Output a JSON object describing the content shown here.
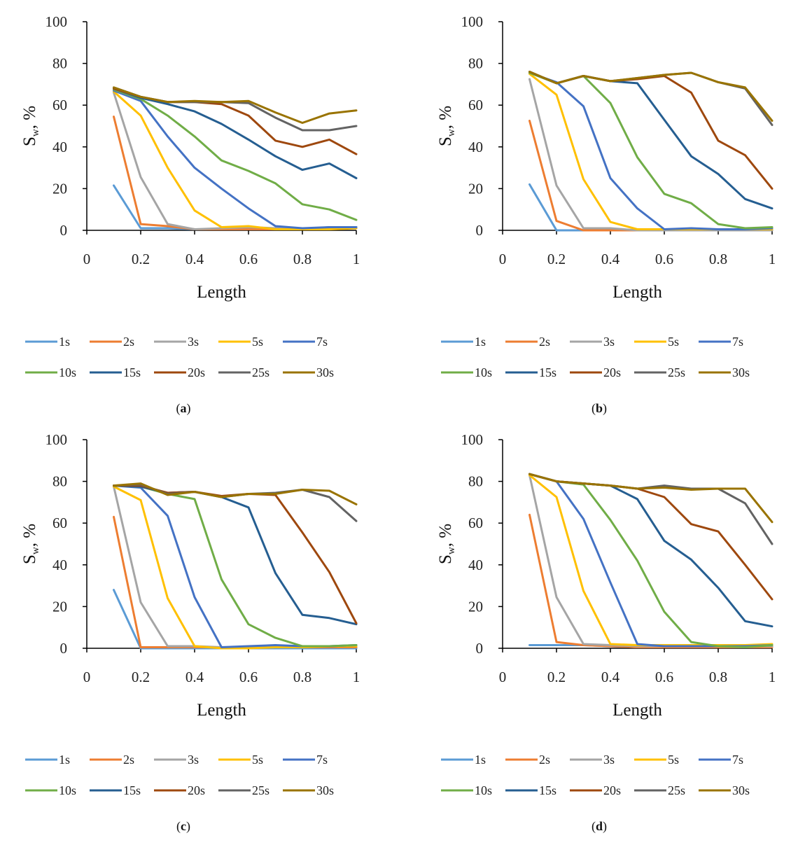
{
  "chart_data": [
    {
      "type": "line",
      "caption": "(a)",
      "caption_letter": "a",
      "xlabel": "Length",
      "ylabel": "Sw, %",
      "ylabel_main": "S",
      "ylabel_sub": "w",
      "ylabel_rest": ", %",
      "xlim": [
        0,
        1
      ],
      "ylim": [
        0,
        100
      ],
      "xticks": [
        "0",
        "0.2",
        "0.4",
        "0.6",
        "0.8",
        "1"
      ],
      "yticks": [
        "0",
        "20",
        "40",
        "60",
        "80",
        "100"
      ],
      "legend_position": "bottom",
      "x": [
        0.1,
        0.2,
        0.3,
        0.4,
        0.5,
        0.6,
        0.7,
        0.8,
        0.9,
        1.0
      ],
      "series": [
        {
          "name": "1s",
          "color": "#5B9BD5",
          "values": [
            21.5,
            1,
            1,
            0.5,
            0.5,
            0.5,
            0.5,
            0.5,
            1.5,
            1.5
          ]
        },
        {
          "name": "2s",
          "color": "#ED7D31",
          "values": [
            54.5,
            3,
            2,
            0.5,
            0.5,
            0.5,
            0.5,
            0.5,
            1,
            1
          ]
        },
        {
          "name": "3s",
          "color": "#A5A5A5",
          "values": [
            66,
            25.5,
            3,
            0.5,
            1,
            1.5,
            1,
            1,
            1,
            1.5
          ]
        },
        {
          "name": "5s",
          "color": "#FFC000",
          "values": [
            66.5,
            55,
            30,
            9.5,
            1.5,
            2,
            0.5,
            0.5,
            0.5,
            1
          ]
        },
        {
          "name": "7s",
          "color": "#4472C4",
          "values": [
            67,
            62,
            45,
            30,
            20,
            10.5,
            2,
            1,
            1.5,
            1.5
          ]
        },
        {
          "name": "10s",
          "color": "#70AD47",
          "values": [
            67.5,
            63,
            55,
            45,
            33.5,
            28.5,
            22.5,
            12.5,
            10,
            5
          ]
        },
        {
          "name": "15s",
          "color": "#255E91",
          "values": [
            68,
            63.5,
            60.5,
            57,
            51,
            43.5,
            35.5,
            29,
            32,
            25
          ]
        },
        {
          "name": "20s",
          "color": "#9E480E",
          "values": [
            68,
            64,
            61.5,
            61.5,
            60.5,
            55,
            43,
            40,
            43.5,
            36.5
          ]
        },
        {
          "name": "25s",
          "color": "#636363",
          "values": [
            68.5,
            64,
            61.5,
            61.5,
            61.5,
            61,
            54,
            48,
            48,
            50
          ]
        },
        {
          "name": "30s",
          "color": "#997300",
          "values": [
            68.5,
            64,
            61.5,
            62,
            61.5,
            62,
            56.5,
            51.5,
            56,
            57.5
          ]
        }
      ]
    },
    {
      "type": "line",
      "caption": "(b)",
      "caption_letter": "b",
      "xlabel": "Length",
      "ylabel": "Sw, %",
      "ylabel_main": "S",
      "ylabel_sub": "w",
      "ylabel_rest": ", %",
      "xlim": [
        0,
        1
      ],
      "ylim": [
        0,
        100
      ],
      "xticks": [
        "0",
        "0.2",
        "0.4",
        "0.6",
        "0.8",
        "1"
      ],
      "yticks": [
        "0",
        "20",
        "40",
        "60",
        "80",
        "100"
      ],
      "legend_position": "bottom",
      "x": [
        0.1,
        0.2,
        0.3,
        0.4,
        0.5,
        0.6,
        0.7,
        0.8,
        0.9,
        1.0
      ],
      "series": [
        {
          "name": "1s",
          "color": "#5B9BD5",
          "values": [
            22,
            0,
            0,
            0,
            0,
            0,
            0,
            0,
            0,
            0
          ]
        },
        {
          "name": "2s",
          "color": "#ED7D31",
          "values": [
            52.5,
            4.5,
            0,
            0,
            0,
            0,
            0,
            0,
            0,
            0
          ]
        },
        {
          "name": "3s",
          "color": "#A5A5A5",
          "values": [
            72.5,
            21.5,
            1,
            1,
            0,
            0,
            0,
            0,
            0,
            0
          ]
        },
        {
          "name": "5s",
          "color": "#FFC000",
          "values": [
            75,
            65,
            24.5,
            4,
            0.5,
            0.5,
            0.5,
            0.5,
            0.5,
            0.5
          ]
        },
        {
          "name": "7s",
          "color": "#4472C4",
          "values": [
            75.5,
            71,
            59.5,
            25,
            10.5,
            0.5,
            1,
            0.5,
            0.5,
            1
          ]
        },
        {
          "name": "10s",
          "color": "#70AD47",
          "values": [
            75.5,
            70.5,
            74,
            61,
            35,
            17.5,
            13,
            3,
            1,
            1.5
          ]
        },
        {
          "name": "15s",
          "color": "#255E91",
          "values": [
            76,
            70.5,
            74,
            71.5,
            70.5,
            53,
            35.5,
            27,
            15,
            10.5
          ]
        },
        {
          "name": "20s",
          "color": "#9E480E",
          "values": [
            76,
            70.5,
            74,
            71.5,
            72.5,
            74,
            66,
            43,
            36,
            20
          ]
        },
        {
          "name": "25s",
          "color": "#636363",
          "values": [
            76,
            70.5,
            74,
            71.5,
            73,
            74.5,
            75.5,
            71,
            68,
            50.5
          ]
        },
        {
          "name": "30s",
          "color": "#997300",
          "values": [
            76,
            70.5,
            74,
            71.5,
            73,
            74.5,
            75.5,
            71,
            68.5,
            52.5
          ]
        }
      ]
    },
    {
      "type": "line",
      "caption": "(c)",
      "caption_letter": "c",
      "xlabel": "Length",
      "ylabel": "Sw, %",
      "ylabel_main": "S",
      "ylabel_sub": "w",
      "ylabel_rest": ", %",
      "xlim": [
        0,
        1
      ],
      "ylim": [
        0,
        100
      ],
      "xticks": [
        "0",
        "0.2",
        "0.4",
        "0.6",
        "0.8",
        "1"
      ],
      "yticks": [
        "0",
        "20",
        "40",
        "60",
        "80",
        "100"
      ],
      "legend_position": "bottom",
      "x": [
        0.1,
        0.2,
        0.3,
        0.4,
        0.5,
        0.6,
        0.7,
        0.8,
        0.9,
        1.0
      ],
      "series": [
        {
          "name": "1s",
          "color": "#5B9BD5",
          "values": [
            28,
            0,
            0,
            0,
            0,
            0,
            0,
            0,
            0,
            0
          ]
        },
        {
          "name": "2s",
          "color": "#ED7D31",
          "values": [
            63,
            0.5,
            0.5,
            0.5,
            0.5,
            0.5,
            0.5,
            0.5,
            0.5,
            0.5
          ]
        },
        {
          "name": "3s",
          "color": "#A5A5A5",
          "values": [
            77.5,
            22,
            1,
            1,
            0.5,
            0.5,
            1,
            1,
            1,
            1
          ]
        },
        {
          "name": "5s",
          "color": "#FFC000",
          "values": [
            77.5,
            71,
            24,
            1,
            0,
            0,
            0.5,
            0.5,
            1,
            1
          ]
        },
        {
          "name": "7s",
          "color": "#4472C4",
          "values": [
            78,
            77,
            63.5,
            24.5,
            0.5,
            1,
            1.5,
            1,
            1,
            1.5
          ]
        },
        {
          "name": "10s",
          "color": "#70AD47",
          "values": [
            78,
            77.5,
            74,
            71.5,
            33,
            11.5,
            5,
            1,
            1,
            1.5
          ]
        },
        {
          "name": "15s",
          "color": "#255E91",
          "values": [
            78,
            77.5,
            74.5,
            75,
            72.5,
            67.5,
            36,
            16,
            14.5,
            11.5
          ]
        },
        {
          "name": "20s",
          "color": "#9E480E",
          "values": [
            78,
            78,
            74.5,
            75,
            73,
            74,
            73.5,
            55.5,
            36.5,
            12
          ]
        },
        {
          "name": "25s",
          "color": "#636363",
          "values": [
            78,
            78.5,
            74,
            75,
            72.5,
            74,
            74.5,
            76,
            72.5,
            61
          ]
        },
        {
          "name": "30s",
          "color": "#997300",
          "values": [
            78,
            79,
            73.5,
            75,
            72.5,
            74,
            74,
            76,
            75.5,
            69
          ]
        }
      ]
    },
    {
      "type": "line",
      "caption": "(d)",
      "caption_letter": "d",
      "xlabel": "Length",
      "ylabel": "Sw, %",
      "ylabel_main": "S",
      "ylabel_sub": "w",
      "ylabel_rest": ", %",
      "xlim": [
        0,
        1
      ],
      "ylim": [
        0,
        100
      ],
      "xticks": [
        "0",
        "0.2",
        "0.4",
        "0.6",
        "0.8",
        "1"
      ],
      "yticks": [
        "0",
        "20",
        "40",
        "60",
        "80",
        "100"
      ],
      "legend_position": "bottom",
      "x": [
        0.1,
        0.2,
        0.3,
        0.4,
        0.5,
        0.6,
        0.7,
        0.8,
        0.9,
        1.0
      ],
      "series": [
        {
          "name": "1s",
          "color": "#5B9BD5",
          "values": [
            1.5,
            1.5,
            1.5,
            1,
            0.5,
            0.5,
            0.5,
            0.5,
            0.5,
            1
          ]
        },
        {
          "name": "2s",
          "color": "#ED7D31",
          "values": [
            64,
            3,
            1.5,
            1,
            0.5,
            0.5,
            0.5,
            0.5,
            0.5,
            0.5
          ]
        },
        {
          "name": "3s",
          "color": "#A5A5A5",
          "values": [
            83,
            24.5,
            2,
            1.5,
            1,
            1,
            1,
            1,
            1,
            1
          ]
        },
        {
          "name": "5s",
          "color": "#FFC000",
          "values": [
            83,
            72.5,
            27.5,
            2,
            1.5,
            1.5,
            1.5,
            1.5,
            1.5,
            2
          ]
        },
        {
          "name": "7s",
          "color": "#4472C4",
          "values": [
            83.5,
            80,
            62,
            31.5,
            2,
            1,
            1,
            1,
            1,
            1.5
          ]
        },
        {
          "name": "10s",
          "color": "#70AD47",
          "values": [
            83.5,
            80,
            78.5,
            61.5,
            42,
            17.5,
            3,
            1,
            0.5,
            1.5
          ]
        },
        {
          "name": "15s",
          "color": "#255E91",
          "values": [
            83.5,
            80,
            79,
            78,
            71.5,
            51.5,
            42.5,
            29,
            13,
            10.5
          ]
        },
        {
          "name": "20s",
          "color": "#9E480E",
          "values": [
            83.5,
            80,
            79,
            78,
            76.5,
            72.5,
            59.5,
            56,
            40,
            23.5
          ]
        },
        {
          "name": "25s",
          "color": "#636363",
          "values": [
            83.5,
            80,
            79,
            78,
            76.5,
            78,
            76.5,
            76.5,
            69.5,
            50
          ]
        },
        {
          "name": "30s",
          "color": "#997300",
          "values": [
            83.5,
            80,
            79,
            78,
            76.5,
            77,
            76,
            76.5,
            76.5,
            60.5
          ]
        }
      ]
    }
  ]
}
